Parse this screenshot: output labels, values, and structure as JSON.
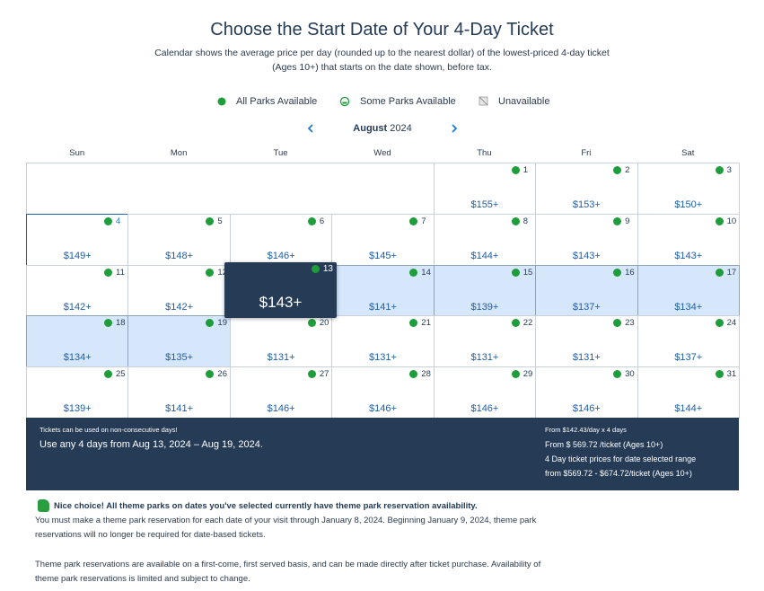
{
  "title": "Choose the Start Date of Your 4-Day Ticket",
  "subtitle": [
    "Calendar shows the average price per day (rounded up to the nearest dollar) of the lowest-priced 4-day ticket",
    "(Ages 10+) that starts on the date shown, before tax."
  ],
  "legend": [
    "All Parks Available",
    "Some Parks Available",
    "Unavailable"
  ],
  "month": {
    "name": "August",
    "year": "2024"
  },
  "weekdays": [
    "Sun",
    "Mon",
    "Tue",
    "Wed",
    "Thu",
    "Fri",
    "Sat"
  ],
  "days": [
    {
      "day": 1,
      "price": "$155+"
    },
    {
      "day": 2,
      "price": "$153+"
    },
    {
      "day": 3,
      "price": "$150+"
    },
    {
      "day": 4,
      "price": "$149+"
    },
    {
      "day": 5,
      "price": "$148+"
    },
    {
      "day": 6,
      "price": "$146+"
    },
    {
      "day": 7,
      "price": "$145+"
    },
    {
      "day": 8,
      "price": "$144+"
    },
    {
      "day": 9,
      "price": "$143+"
    },
    {
      "day": 10,
      "price": "$143+"
    },
    {
      "day": 11,
      "price": "$142+"
    },
    {
      "day": 12,
      "price": "$142+"
    },
    {
      "day": 13,
      "price": "$143+"
    },
    {
      "day": 14,
      "price": "$141+"
    },
    {
      "day": 15,
      "price": "$139+"
    },
    {
      "day": 16,
      "price": "$137+"
    },
    {
      "day": 17,
      "price": "$134+"
    },
    {
      "day": 18,
      "price": "$134+"
    },
    {
      "day": 19,
      "price": "$135+"
    },
    {
      "day": 20,
      "price": "$131+"
    },
    {
      "day": 21,
      "price": "$131+"
    },
    {
      "day": 22,
      "price": "$131+"
    },
    {
      "day": 23,
      "price": "$131+"
    },
    {
      "day": 24,
      "price": "$137+"
    },
    {
      "day": 25,
      "price": "$139+"
    },
    {
      "day": 26,
      "price": "$141+"
    },
    {
      "day": 27,
      "price": "$146+"
    },
    {
      "day": 28,
      "price": "$146+"
    },
    {
      "day": 29,
      "price": "$146+"
    },
    {
      "day": 30,
      "price": "$146+"
    },
    {
      "day": 31,
      "price": "$144+"
    }
  ],
  "summary": {
    "note": "Tickets can be used on non-consecutive days!",
    "range": "Use any 4 days from Aug 13, 2024 – Aug 19, 2024.",
    "per_day": "From $142.43/day x 4 days",
    "per_ticket": "From $ 569.72 /ticket (Ages 10+)",
    "range_label": "4 Day ticket prices for date selected range",
    "range_prices": "from $569.72 - $674.72/ticket (Ages 10+)"
  },
  "notice": {
    "headline": "Nice choice! All theme parks on dates you've selected currently have theme park reservation availability.",
    "paragraph1": [
      "You must make a theme park reservation for each date of your visit through January 8, 2024. Beginning January 9, 2024, theme park",
      "reservations will no longer be required for date-based tickets."
    ],
    "paragraph2": [
      "Theme park reservations are available on a first-come, first served basis, and can be made directly after ticket purchase. Availability of",
      "theme park reservations is limited and subject to change."
    ]
  }
}
